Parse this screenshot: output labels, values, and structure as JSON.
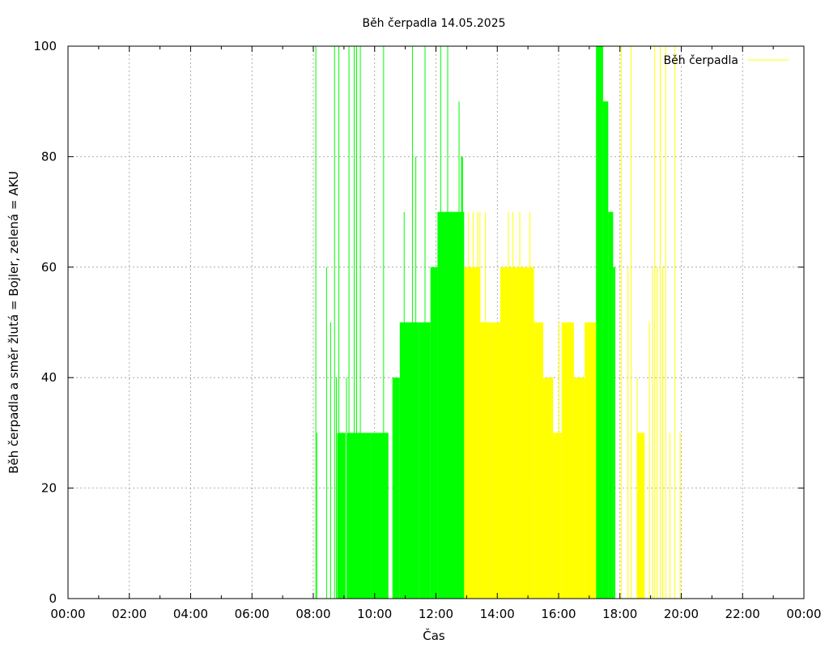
{
  "chart_data": {
    "type": "bar",
    "title": "Běh čerpadla 14.05.2025",
    "xlabel": "Čas",
    "ylabel": "Běh čerpadla a směr žlutá = Bojler, zelená = AKU",
    "xlim": [
      0,
      24
    ],
    "ylim": [
      0,
      100
    ],
    "grid": true,
    "legend_position": "top-right",
    "x_ticks": [
      "00:00",
      "02:00",
      "04:00",
      "06:00",
      "08:00",
      "10:00",
      "12:00",
      "14:00",
      "16:00",
      "18:00",
      "20:00",
      "22:00",
      "00:00"
    ],
    "y_ticks": [
      "0",
      "20",
      "40",
      "60",
      "80",
      "100"
    ],
    "legend": [
      {
        "label": "Běh čerpadla",
        "color": "#ffff00"
      }
    ],
    "series_colors": {
      "aku": "#00ff00",
      "bojler": "#ffff00"
    },
    "series": [
      {
        "key": "aku",
        "bar_width_h": 0.025,
        "x": [
          8.07,
          8.1,
          8.42,
          8.55,
          8.68,
          8.74,
          8.82,
          8.94,
          9.07,
          9.15,
          9.32,
          9.4,
          9.47,
          9.52,
          10.28,
          10.95,
          11.22,
          11.33,
          11.63,
          12.14,
          12.37,
          12.46,
          12.74
        ],
        "values": [
          100,
          30,
          60,
          50,
          100,
          40,
          100,
          30,
          40,
          100,
          100,
          100,
          30,
          100,
          100,
          70,
          100,
          80,
          100,
          100,
          100,
          50,
          90
        ],
        "blocks": [
          {
            "start": 8.78,
            "end": 9.05,
            "value": 30
          },
          {
            "start": 9.1,
            "end": 9.85,
            "value": 30
          },
          {
            "start": 9.85,
            "end": 10.45,
            "value": 30
          },
          {
            "start": 10.58,
            "end": 10.82,
            "value": 40
          },
          {
            "start": 10.82,
            "end": 11.05,
            "value": 50
          },
          {
            "start": 11.05,
            "end": 11.45,
            "value": 50
          },
          {
            "start": 11.45,
            "end": 11.82,
            "value": 50
          },
          {
            "start": 11.82,
            "end": 12.05,
            "value": 60
          },
          {
            "start": 12.05,
            "end": 12.62,
            "value": 70
          },
          {
            "start": 12.62,
            "end": 12.92,
            "value": 70
          },
          {
            "start": 12.82,
            "end": 12.88,
            "value": 80
          },
          {
            "start": 17.22,
            "end": 17.45,
            "value": 100
          },
          {
            "start": 17.45,
            "end": 17.62,
            "value": 90
          },
          {
            "start": 17.62,
            "end": 17.78,
            "value": 70
          },
          {
            "start": 17.78,
            "end": 17.85,
            "value": 60
          }
        ]
      },
      {
        "key": "bojler",
        "bar_width_h": 0.025,
        "x": [
          13.05,
          13.2,
          13.35,
          13.42,
          13.6,
          14.35,
          14.5,
          14.72,
          15.05,
          15.42,
          16.0,
          16.95,
          17.15,
          18.03,
          18.25,
          18.35,
          18.55,
          18.7,
          18.78,
          18.95,
          19.05,
          19.12,
          19.2,
          19.3,
          19.38,
          19.48,
          19.62,
          19.78,
          19.95
        ],
        "values": [
          70,
          70,
          70,
          70,
          70,
          70,
          70,
          70,
          70,
          50,
          50,
          50,
          50,
          100,
          60,
          100,
          40,
          30,
          30,
          50,
          60,
          100,
          60,
          100,
          60,
          100,
          30,
          100,
          30
        ],
        "blocks": [
          {
            "start": 12.92,
            "end": 13.45,
            "value": 60
          },
          {
            "start": 13.45,
            "end": 13.8,
            "value": 50
          },
          {
            "start": 13.8,
            "end": 14.1,
            "value": 50
          },
          {
            "start": 14.1,
            "end": 14.65,
            "value": 60
          },
          {
            "start": 14.65,
            "end": 15.2,
            "value": 60
          },
          {
            "start": 15.2,
            "end": 15.5,
            "value": 50
          },
          {
            "start": 15.5,
            "end": 15.82,
            "value": 40
          },
          {
            "start": 15.82,
            "end": 16.1,
            "value": 30
          },
          {
            "start": 16.1,
            "end": 16.5,
            "value": 50
          },
          {
            "start": 16.5,
            "end": 16.85,
            "value": 40
          },
          {
            "start": 16.85,
            "end": 17.22,
            "value": 50
          },
          {
            "start": 18.55,
            "end": 18.8,
            "value": 30
          }
        ]
      }
    ]
  }
}
